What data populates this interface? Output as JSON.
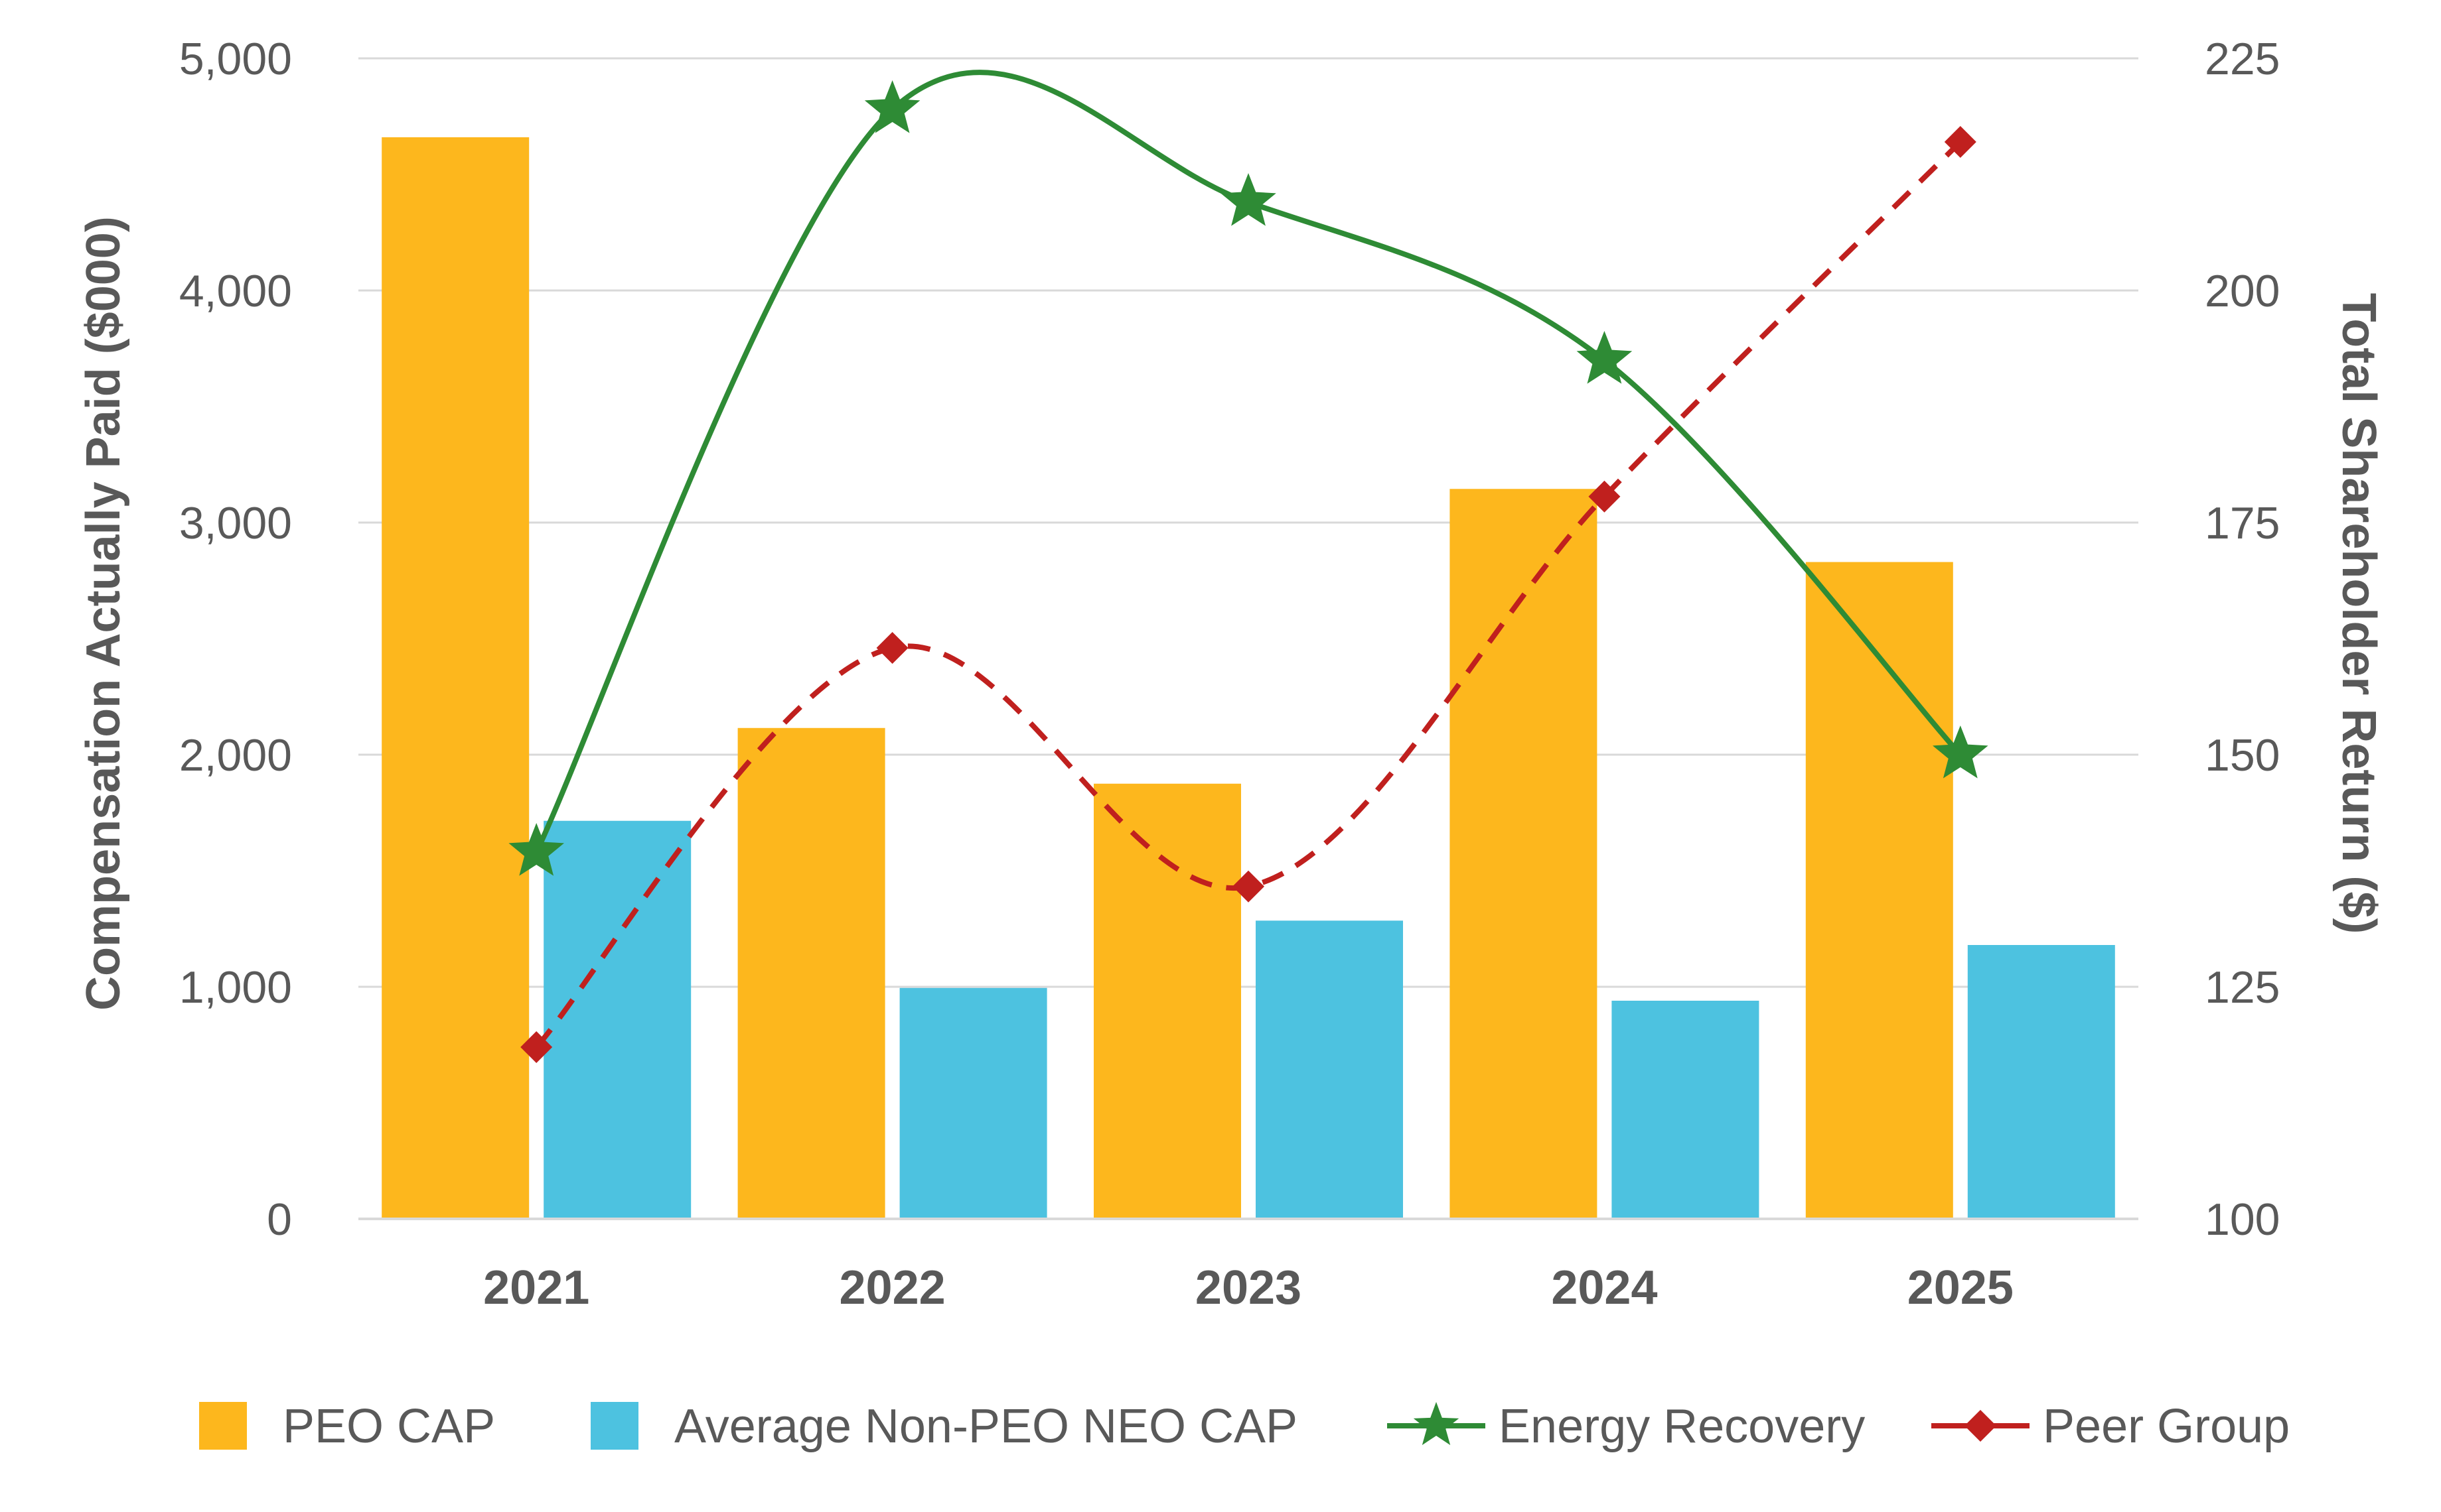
{
  "chart_data": {
    "type": "bar",
    "title": "",
    "categories": [
      "2021",
      "2022",
      "2023",
      "2024",
      "2025"
    ],
    "left_axis": {
      "label": "Compensation Actually Paid ($000)",
      "range": [
        0,
        5000
      ],
      "ticks": [
        0,
        1000,
        2000,
        3000,
        4000,
        5000
      ],
      "tick_labels": [
        "0",
        "1,000",
        "2,000",
        "3,000",
        "4,000",
        "5,000"
      ]
    },
    "right_axis": {
      "label": "Total Shareholder Return ($)",
      "range": [
        100,
        225
      ],
      "ticks": [
        100,
        125,
        150,
        175,
        200,
        225
      ],
      "tick_labels": [
        "100",
        "125",
        "150",
        "175",
        "200",
        "225"
      ]
    },
    "grid": true,
    "legend_position": "bottom",
    "series": [
      {
        "name": "PEO CAP",
        "kind": "bar",
        "axis": "left",
        "color": "#FDB71D",
        "values": [
          4660,
          2115,
          1875,
          3145,
          2830
        ]
      },
      {
        "name": "Average Non-PEO NEO CAP",
        "kind": "bar",
        "axis": "left",
        "color": "#4DC2E0",
        "values": [
          1715,
          995,
          1285,
          940,
          1180
        ]
      },
      {
        "name": "Energy Recovery",
        "kind": "line",
        "axis": "right",
        "color": "#2E8B35",
        "marker": "star",
        "dash": "solid",
        "values": [
          139.5,
          219.5,
          209.5,
          192.5,
          150
        ]
      },
      {
        "name": "Peer Group",
        "kind": "line",
        "axis": "right",
        "color": "#C0201E",
        "marker": "diamond",
        "dash": "dashed",
        "values": [
          118.5,
          161.5,
          135.8,
          177.8,
          216
        ]
      }
    ]
  }
}
